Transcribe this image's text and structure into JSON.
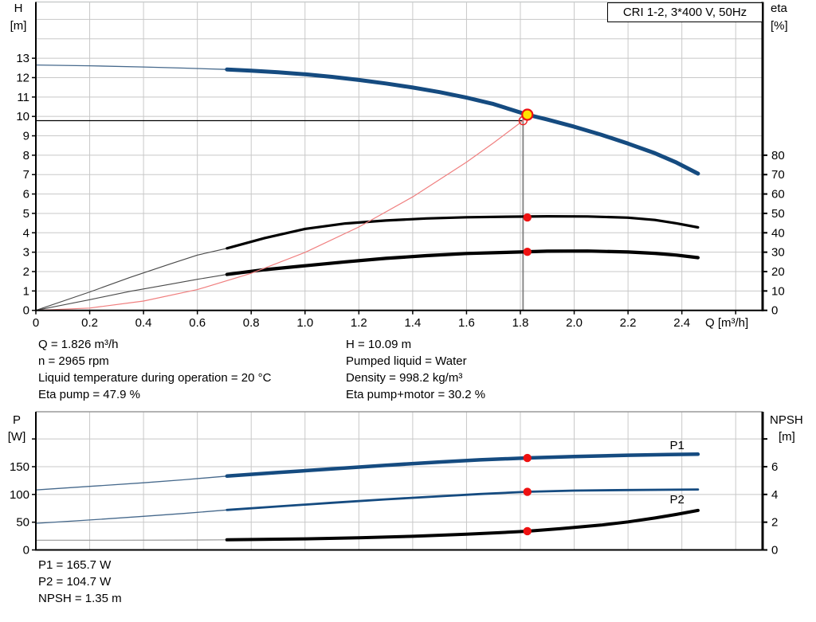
{
  "title_box": {
    "label": "CRI 1-2, 3*400 V, 50Hz"
  },
  "operating_data": {
    "left_column": [
      "Q = 1.826 m³/h",
      "n = 2965 rpm",
      "Liquid temperature during operation = 20 °C",
      "Eta pump = 47.9 %"
    ],
    "right_column": [
      "H = 10.09 m",
      "Pumped liquid = Water",
      "Density = 998.2 kg/m³",
      "Eta pump+motor = 30.2 %"
    ]
  },
  "power_data": [
    "P1 = 165.7 W",
    "P2 = 104.7 W",
    "NPSH = 1.35 m"
  ],
  "colors": {
    "curve_blue": "#154b80",
    "thin_blue": "#46698c",
    "black": "#000000",
    "thin_black": "#4a4a4a",
    "thin_gray": "#999999",
    "system_red": "#f07f7f",
    "marker_red": "#ee1111",
    "duty_yellow": "#ffe400",
    "grid": "#c8c8c8",
    "crosshair_gray": "#808080",
    "label_blue": "#1f63a8"
  },
  "chart_data": [
    {
      "type": "line",
      "title": "CRI 1-2, 3*400 V, 50Hz",
      "axes": {
        "x": {
          "label": "Q [m³/h]",
          "min": 0,
          "max": 2.7,
          "tick_step": 0.2,
          "labeled_max": 2.4
        },
        "left": {
          "label": "H",
          "unit": "[m]",
          "min": 0,
          "max": 15.9,
          "tick_step": 1,
          "tick_max": 13,
          "labeled_max": 13
        },
        "right": {
          "label": "eta",
          "unit": "[%]",
          "min": 0,
          "max": 159,
          "tick_step": 10,
          "tick_max": 80,
          "labeled_max": 80
        }
      },
      "duty_point": {
        "q": 1.826,
        "v": 10.09
      },
      "requested_point": {
        "q": 1.81,
        "v": 9.78
      },
      "series": [
        {
          "name": "pump-curve-h",
          "axis": "left",
          "color": "curve_blue",
          "thin_color": "thin_blue",
          "thin_w": 1.3,
          "thick_w": 5,
          "thin": [
            [
              0,
              12.65
            ],
            [
              0.2,
              12.61
            ],
            [
              0.4,
              12.55
            ],
            [
              0.55,
              12.49
            ],
            [
              0.71,
              12.42
            ]
          ],
          "thick": [
            [
              0.71,
              12.42
            ],
            [
              0.8,
              12.36
            ],
            [
              0.9,
              12.28
            ],
            [
              1,
              12.17
            ],
            [
              1.1,
              12.04
            ],
            [
              1.2,
              11.88
            ],
            [
              1.3,
              11.7
            ],
            [
              1.4,
              11.49
            ],
            [
              1.5,
              11.25
            ],
            [
              1.6,
              10.97
            ],
            [
              1.7,
              10.64
            ],
            [
              1.826,
              10.09
            ],
            [
              1.9,
              9.84
            ],
            [
              2,
              9.47
            ],
            [
              2.1,
              9.06
            ],
            [
              2.2,
              8.6
            ],
            [
              2.3,
              8.1
            ],
            [
              2.38,
              7.62
            ],
            [
              2.46,
              7.05
            ]
          ]
        },
        {
          "name": "eta-pump",
          "axis": "right",
          "color": "black",
          "thin_color": "thin_black",
          "thin_w": 1.1,
          "thick_w": 3.2,
          "thin": [
            [
              0,
              0
            ],
            [
              0.2,
              9.5
            ],
            [
              0.35,
              17
            ],
            [
              0.5,
              24
            ],
            [
              0.6,
              28.5
            ],
            [
              0.71,
              32
            ]
          ],
          "thick": [
            [
              0.71,
              32
            ],
            [
              0.85,
              37.3
            ],
            [
              1,
              42
            ],
            [
              1.15,
              44.8
            ],
            [
              1.3,
              46.3
            ],
            [
              1.45,
              47.4
            ],
            [
              1.6,
              48
            ],
            [
              1.75,
              48.3
            ],
            [
              1.9,
              48.5
            ],
            [
              2.05,
              48.4
            ],
            [
              2.2,
              47.8
            ],
            [
              2.3,
              46.6
            ],
            [
              2.38,
              44.9
            ],
            [
              2.46,
              42.8
            ]
          ]
        },
        {
          "name": "eta-pump-motor",
          "axis": "right",
          "color": "black",
          "thin_color": "thin_black",
          "thin_w": 1.1,
          "thick_w": 4.2,
          "thin": [
            [
              0,
              0
            ],
            [
              0.2,
              5.5
            ],
            [
              0.35,
              9.8
            ],
            [
              0.5,
              13.5
            ],
            [
              0.6,
              16
            ],
            [
              0.71,
              18.5
            ]
          ],
          "thick": [
            [
              0.71,
              18.5
            ],
            [
              0.85,
              21
            ],
            [
              1,
              23
            ],
            [
              1.15,
              25
            ],
            [
              1.3,
              26.8
            ],
            [
              1.45,
              28.2
            ],
            [
              1.6,
              29.3
            ],
            [
              1.75,
              29.9
            ],
            [
              1.9,
              30.5
            ],
            [
              2.05,
              30.6
            ],
            [
              2.2,
              30.1
            ],
            [
              2.3,
              29.4
            ],
            [
              2.38,
              28.5
            ],
            [
              2.46,
              27.2
            ]
          ]
        },
        {
          "name": "system-curve",
          "axis": "left",
          "color": "system_red",
          "thin_color": "system_red",
          "thin_w": 1.2,
          "thick_w": 1.2,
          "thin": [
            [
              0,
              0
            ],
            [
              0.2,
              0.12
            ],
            [
              0.4,
              0.48
            ],
            [
              0.6,
              1.07
            ],
            [
              0.8,
              1.91
            ],
            [
              1,
              2.99
            ],
            [
              1.2,
              4.3
            ],
            [
              1.4,
              5.85
            ],
            [
              1.6,
              7.64
            ],
            [
              1.7,
              8.63
            ],
            [
              1.81,
              9.78
            ],
            [
              1.84,
              10.1
            ]
          ],
          "thick": []
        }
      ],
      "markers": [
        {
          "name": "eta-pump-operating-dot",
          "axis": "right",
          "q": 1.826,
          "v": 47.9
        },
        {
          "name": "eta-pump-motor-operating-dot",
          "axis": "right",
          "q": 1.826,
          "v": 30.2
        }
      ],
      "series_labels": []
    },
    {
      "type": "line",
      "title": "",
      "axes": {
        "x": {
          "label": "",
          "min": 0,
          "max": 2.7,
          "tick_step": 0.2,
          "labeled_max": -1
        },
        "left": {
          "label": "P",
          "unit": "[W]",
          "min": 0,
          "max": 249,
          "tick_step": 50,
          "tick_max": 200,
          "labeled_max": 150
        },
        "right": {
          "label": "NPSH",
          "unit": "[m]",
          "min": 0,
          "max": 9.96,
          "tick_step": 2,
          "tick_max": 8,
          "labeled_max": 6
        }
      },
      "series": [
        {
          "name": "p1-input-power",
          "axis": "left",
          "color": "curve_blue",
          "thin_color": "thin_blue",
          "thin_w": 1.3,
          "thick_w": 4.5,
          "thin": [
            [
              0,
              108
            ],
            [
              0.2,
              114.5
            ],
            [
              0.4,
              121
            ],
            [
              0.55,
              126.5
            ],
            [
              0.71,
              133
            ]
          ],
          "thick": [
            [
              0.71,
              133
            ],
            [
              0.9,
              139.5
            ],
            [
              1.1,
              146
            ],
            [
              1.3,
              152.5
            ],
            [
              1.5,
              158.5
            ],
            [
              1.65,
              162.3
            ],
            [
              1.826,
              165.7
            ],
            [
              2,
              168.3
            ],
            [
              2.2,
              170.7
            ],
            [
              2.35,
              171.8
            ],
            [
              2.46,
              172.5
            ]
          ]
        },
        {
          "name": "p2-shaft-power",
          "axis": "left",
          "color": "curve_blue",
          "thin_color": "thin_blue",
          "thin_w": 1.3,
          "thick_w": 2.8,
          "thin": [
            [
              0,
              48
            ],
            [
              0.2,
              54
            ],
            [
              0.4,
              60.5
            ],
            [
              0.55,
              65.8
            ],
            [
              0.71,
              72
            ]
          ],
          "thick": [
            [
              0.71,
              72
            ],
            [
              0.9,
              78.3
            ],
            [
              1.1,
              85
            ],
            [
              1.3,
              91.2
            ],
            [
              1.5,
              96.8
            ],
            [
              1.65,
              100.7
            ],
            [
              1.826,
              104.7
            ],
            [
              2,
              106.9
            ],
            [
              2.2,
              107.9
            ],
            [
              2.46,
              109
            ]
          ]
        },
        {
          "name": "npsh-curve",
          "axis": "right",
          "color": "black",
          "thin_color": "thin_gray",
          "thin_w": 1.2,
          "thick_w": 4,
          "thin": [
            [
              0,
              0.7
            ],
            [
              0.3,
              0.7
            ],
            [
              0.55,
              0.71
            ],
            [
              0.71,
              0.73
            ]
          ],
          "thick": [
            [
              0.71,
              0.73
            ],
            [
              1,
              0.8
            ],
            [
              1.2,
              0.88
            ],
            [
              1.4,
              0.98
            ],
            [
              1.6,
              1.13
            ],
            [
              1.72,
              1.24
            ],
            [
              1.826,
              1.35
            ],
            [
              1.95,
              1.53
            ],
            [
              2.1,
              1.79
            ],
            [
              2.2,
              2.02
            ],
            [
              2.3,
              2.3
            ],
            [
              2.38,
              2.56
            ],
            [
              2.46,
              2.85
            ]
          ]
        }
      ],
      "markers": [
        {
          "name": "p1-operating-dot",
          "axis": "left",
          "q": 1.826,
          "v": 165.7
        },
        {
          "name": "p2-operating-dot",
          "axis": "left",
          "q": 1.826,
          "v": 104.7
        },
        {
          "name": "npsh-operating-dot",
          "axis": "right",
          "q": 1.826,
          "v": 1.35
        }
      ],
      "series_labels": [
        {
          "text": "P1",
          "axis": "left",
          "q": 2.355,
          "v": 181.5
        },
        {
          "text": "P2",
          "axis": "left",
          "q": 2.355,
          "v": 84
        }
      ]
    }
  ]
}
